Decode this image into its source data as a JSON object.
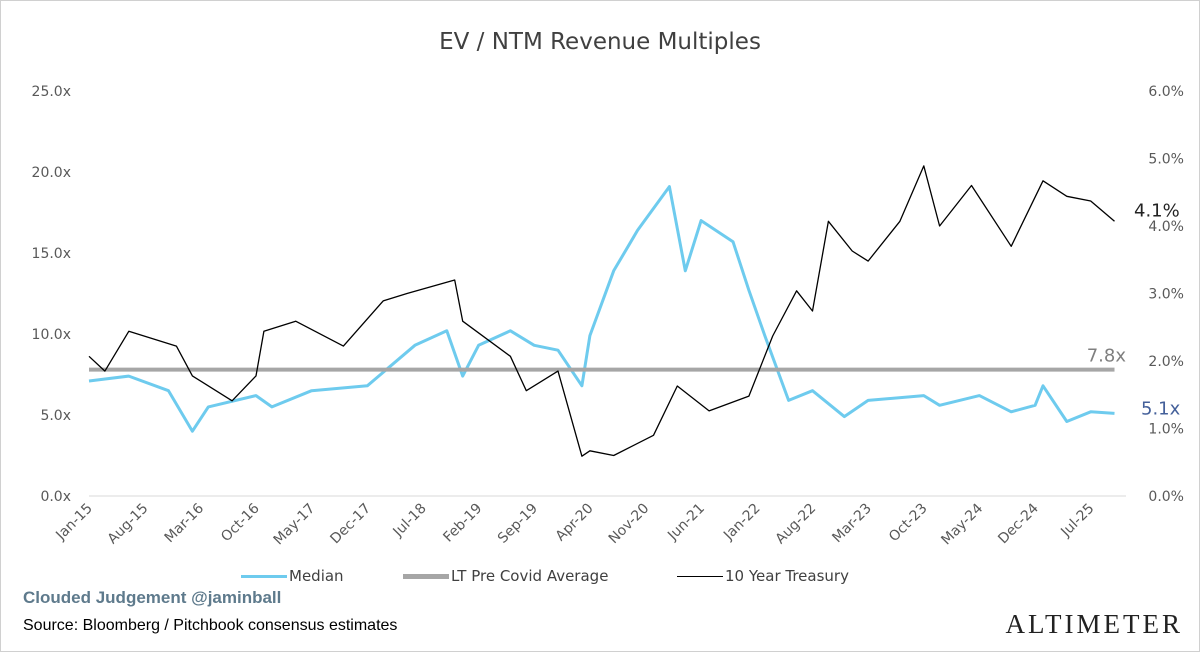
{
  "chart_data": {
    "type": "line",
    "title": "EV / NTM Revenue Multiples",
    "x_ticks": [
      "Jan-15",
      "Aug-15",
      "Mar-16",
      "Oct-16",
      "May-17",
      "Dec-17",
      "Jul-18",
      "Feb-19",
      "Sep-19",
      "Apr-20",
      "Nov-20",
      "Jun-21",
      "Jan-22",
      "Aug-22",
      "Mar-23",
      "Oct-23",
      "May-24",
      "Dec-24",
      "Jul-25"
    ],
    "y_left": {
      "ticks": [
        "0.0x",
        "5.0x",
        "10.0x",
        "15.0x",
        "20.0x",
        "25.0x"
      ],
      "range": [
        0,
        25
      ]
    },
    "y_right": {
      "ticks": [
        "0.0%",
        "1.0%",
        "2.0%",
        "3.0%",
        "4.0%",
        "5.0%",
        "6.0%"
      ],
      "range": [
        0,
        6
      ]
    },
    "grid": false,
    "legend_position": "bottom",
    "series": [
      {
        "name": "Median",
        "axis": "left",
        "color": "#6ecbee",
        "points": [
          [
            "2015-01",
            7.1
          ],
          [
            "2015-06",
            7.4
          ],
          [
            "2015-11",
            6.5
          ],
          [
            "2016-02",
            4.0
          ],
          [
            "2016-04",
            5.5
          ],
          [
            "2016-10",
            6.2
          ],
          [
            "2016-12",
            5.5
          ],
          [
            "2017-05",
            6.5
          ],
          [
            "2017-12",
            6.8
          ],
          [
            "2018-06",
            9.3
          ],
          [
            "2018-10",
            10.2
          ],
          [
            "2018-12",
            7.4
          ],
          [
            "2019-02",
            9.3
          ],
          [
            "2019-06",
            10.2
          ],
          [
            "2019-09",
            9.3
          ],
          [
            "2019-12",
            9.0
          ],
          [
            "2020-03",
            6.8
          ],
          [
            "2020-04",
            9.9
          ],
          [
            "2020-07",
            13.9
          ],
          [
            "2020-10",
            16.4
          ],
          [
            "2021-02",
            19.1
          ],
          [
            "2021-04",
            13.9
          ],
          [
            "2021-06",
            17.0
          ],
          [
            "2021-10",
            15.7
          ],
          [
            "2021-12",
            12.7
          ],
          [
            "2022-02",
            9.9
          ],
          [
            "2022-05",
            5.9
          ],
          [
            "2022-08",
            6.5
          ],
          [
            "2022-12",
            4.9
          ],
          [
            "2023-03",
            5.9
          ],
          [
            "2023-10",
            6.2
          ],
          [
            "2023-12",
            5.6
          ],
          [
            "2024-05",
            6.2
          ],
          [
            "2024-09",
            5.2
          ],
          [
            "2024-12",
            5.6
          ],
          [
            "2025-01",
            6.8
          ],
          [
            "2025-04",
            4.6
          ],
          [
            "2025-07",
            5.2
          ],
          [
            "2025-10",
            5.1
          ]
        ]
      },
      {
        "name": "LT Pre Covid Average",
        "axis": "left",
        "color": "#a6a6a6",
        "points": [
          [
            "2015-01",
            7.8
          ],
          [
            "2025-10",
            7.8
          ]
        ]
      },
      {
        "name": "10 Year Treasury",
        "axis": "right",
        "color": "#000000",
        "points": [
          [
            "2015-01",
            2.07
          ],
          [
            "2015-03",
            1.85
          ],
          [
            "2015-06",
            2.44
          ],
          [
            "2015-12",
            2.22
          ],
          [
            "2016-02",
            1.78
          ],
          [
            "2016-07",
            1.41
          ],
          [
            "2016-10",
            1.78
          ],
          [
            "2016-11",
            2.44
          ],
          [
            "2017-03",
            2.59
          ],
          [
            "2017-09",
            2.22
          ],
          [
            "2018-02",
            2.89
          ],
          [
            "2018-05",
            3.0
          ],
          [
            "2018-11",
            3.2
          ],
          [
            "2018-12",
            2.59
          ],
          [
            "2019-06",
            2.07
          ],
          [
            "2019-08",
            1.56
          ],
          [
            "2019-12",
            1.85
          ],
          [
            "2020-03",
            0.59
          ],
          [
            "2020-04",
            0.67
          ],
          [
            "2020-07",
            0.6
          ],
          [
            "2020-12",
            0.9
          ],
          [
            "2021-03",
            1.63
          ],
          [
            "2021-07",
            1.26
          ],
          [
            "2021-12",
            1.48
          ],
          [
            "2022-03",
            2.37
          ],
          [
            "2022-06",
            3.04
          ],
          [
            "2022-08",
            2.74
          ],
          [
            "2022-10",
            4.07
          ],
          [
            "2023-01",
            3.63
          ],
          [
            "2023-03",
            3.48
          ],
          [
            "2023-07",
            4.07
          ],
          [
            "2023-10",
            4.89
          ],
          [
            "2023-12",
            4.0
          ],
          [
            "2024-04",
            4.6
          ],
          [
            "2024-09",
            3.7
          ],
          [
            "2025-01",
            4.67
          ],
          [
            "2025-04",
            4.44
          ],
          [
            "2025-07",
            4.37
          ],
          [
            "2025-10",
            4.07
          ]
        ]
      }
    ],
    "annotations": {
      "avg_label": "7.8x",
      "median_last": "5.1x",
      "treasury_last": "4.1%"
    }
  },
  "footer": {
    "brand": "Clouded Judgement @jaminball",
    "source": "Source: Bloomberg / Pitchbook consensus estimates",
    "logo": "ALTIMETER"
  }
}
